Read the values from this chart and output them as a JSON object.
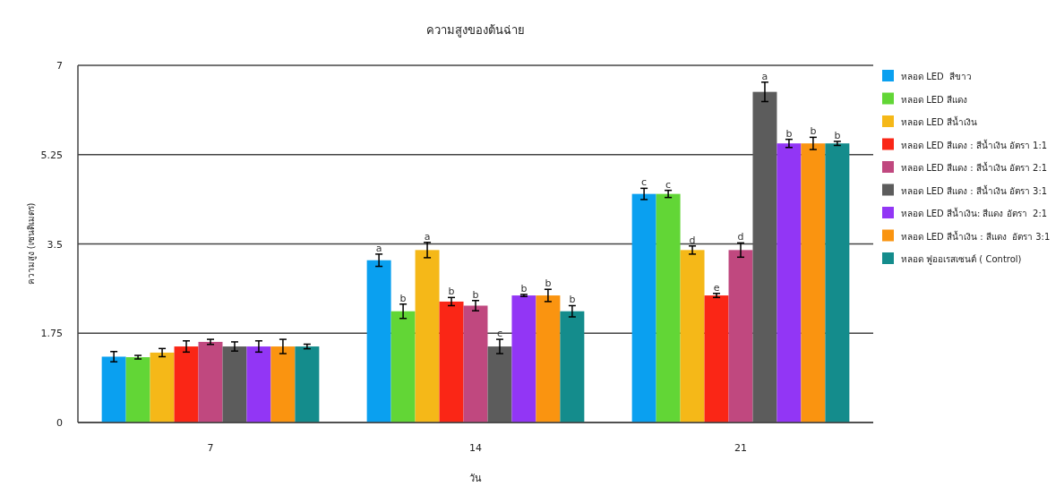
{
  "chart_data": {
    "type": "bar",
    "title": "ความสูงของต้นฉ่าย",
    "xlabel": "วัน",
    "ylabel": "ความสูง (เซนติเมตร)",
    "categories": [
      "7",
      "14",
      "21"
    ],
    "series": [
      {
        "name": "หลอด LED  สีขาว",
        "color": "#0aa0f0",
        "values": [
          1.29,
          3.18,
          4.48
        ],
        "errors": [
          0.1,
          0.12,
          0.11
        ],
        "value_labels": [
          null,
          "a",
          "c"
        ]
      },
      {
        "name": "หลอด LED สีแดง",
        "color": "#62d636",
        "values": [
          1.28,
          2.18,
          4.48
        ],
        "errors": [
          0.035,
          0.14,
          0.07
        ],
        "value_labels": [
          null,
          "b",
          "c"
        ]
      },
      {
        "name": "หลอด LED สีน้ำเงิน",
        "color": "#f5b818",
        "values": [
          1.37,
          3.38,
          3.38
        ],
        "errors": [
          0.08,
          0.15,
          0.08
        ],
        "value_labels": [
          null,
          "a",
          "d"
        ]
      },
      {
        "name": "หลอด LED สีแดง : สีน้ำเงิน อัตรา 1:1",
        "color": "#fa2616",
        "values": [
          1.49,
          2.37,
          2.49
        ],
        "errors": [
          0.11,
          0.08,
          0.04
        ],
        "value_labels": [
          null,
          "b",
          "e"
        ]
      },
      {
        "name": "หลอด LED สีแดง : สีน้ำเงิน อัตรา 2:1",
        "color": "#c0487f",
        "values": [
          1.58,
          2.29,
          3.38
        ],
        "errors": [
          0.05,
          0.1,
          0.14
        ],
        "value_labels": [
          null,
          "b",
          "d"
        ]
      },
      {
        "name": "หลอด LED สีแดง : สีน้ำเงิน อัตรา 3:1",
        "color": "#5c5c5c",
        "values": [
          1.49,
          1.49,
          6.48
        ],
        "errors": [
          0.09,
          0.14,
          0.19
        ],
        "value_labels": [
          null,
          "c",
          "a"
        ]
      },
      {
        "name": "หลอด LED สีน้ำเงิน: สีแดง อัตรา  2:1",
        "color": "#9236f5",
        "values": [
          1.49,
          2.49,
          5.47
        ],
        "errors": [
          0.11,
          0.02,
          0.08
        ],
        "value_labels": [
          null,
          "b",
          "b"
        ]
      },
      {
        "name": "หลอด LED สีน้ำเงิน : สีแดง  อัตรา 3:1",
        "color": "#fa9410",
        "values": [
          1.49,
          2.49,
          5.47
        ],
        "errors": [
          0.14,
          0.12,
          0.12
        ],
        "value_labels": [
          null,
          "b",
          "b"
        ]
      },
      {
        "name": "หลอด ฟูออเรสเซนต์ ( Control)",
        "color": "#148c8c",
        "values": [
          1.49,
          2.18,
          5.47
        ],
        "errors": [
          0.045,
          0.11,
          0.04
        ],
        "value_labels": [
          null,
          "b",
          "b"
        ]
      }
    ],
    "ylim": [
      0,
      7
    ],
    "yticks": [
      0,
      1.75,
      3.5,
      5.25,
      7
    ],
    "grid": "y",
    "legend": "top right"
  }
}
